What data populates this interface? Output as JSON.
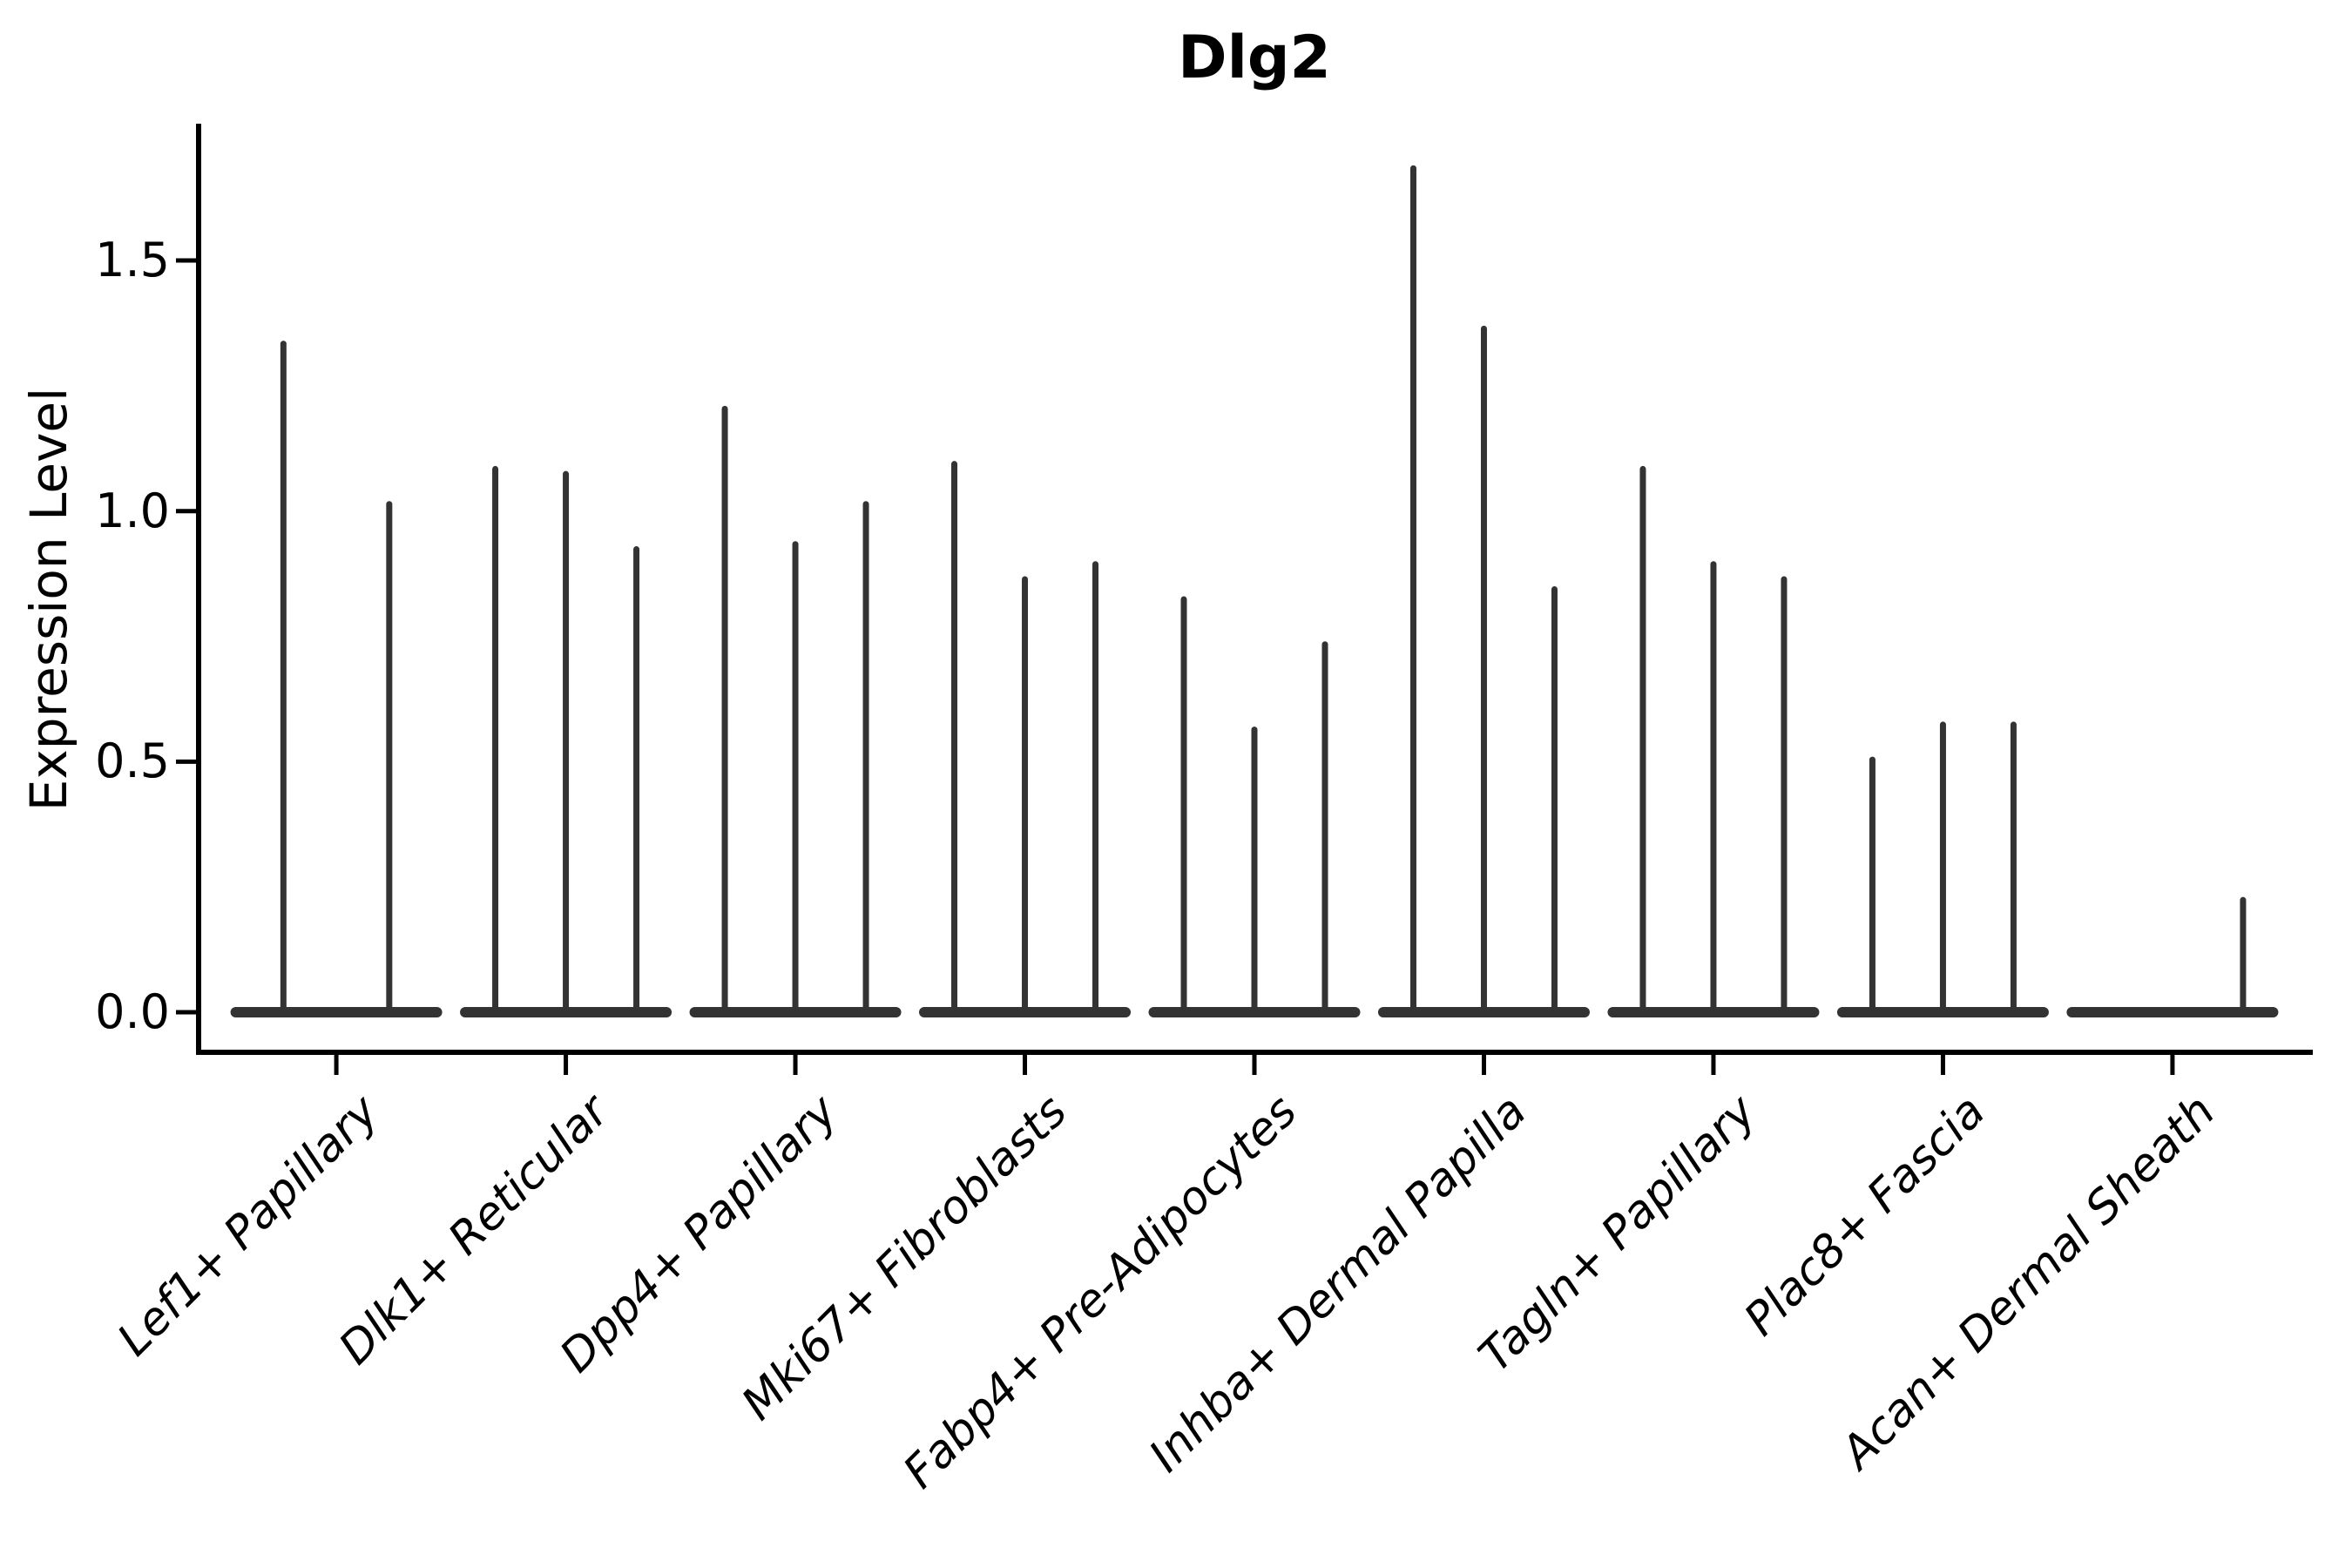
{
  "figure": {
    "background": "#ffffff"
  },
  "chart_data": {
    "type": "violin",
    "title": "Dlg2",
    "xlabel": "",
    "ylabel": "Expression Level",
    "ylim": [
      0,
      1.77
    ],
    "grid": false,
    "legend": "none",
    "axis_color": "#000000",
    "violin_color": "#333333",
    "y_ticks": [
      {
        "label": "0.0",
        "value": 0.0
      },
      {
        "label": "0.5",
        "value": 0.5
      },
      {
        "label": "1.0",
        "value": 1.0
      },
      {
        "label": "1.5",
        "value": 1.5
      }
    ],
    "categories": [
      "Lef1+ Papillary",
      "Dlk1+ Reticular",
      "Dpp4+ Papillary",
      "Mki67+ Fibroblasts",
      "Fabp4+ Pre-Adipocytes",
      "Inhba+ Dermal Papilla",
      "Tagln+ Papillary",
      "Plac8+ Fascia",
      "Acan+ Dermal Sheath"
    ],
    "groups": [
      {
        "label": "Lef1+ Papillary",
        "violin_peaks": [
          1.34,
          1.02
        ]
      },
      {
        "label": "Dlk1+ Reticular",
        "violin_peaks": [
          1.09,
          1.08,
          0.93
        ]
      },
      {
        "label": "Dpp4+ Papillary",
        "violin_peaks": [
          1.21,
          0.94,
          1.02
        ]
      },
      {
        "label": "Mki67+ Fibroblasts",
        "violin_peaks": [
          1.1,
          0.87,
          0.9
        ]
      },
      {
        "label": "Fabp4+ Pre-Adipocytes",
        "violin_peaks": [
          0.83,
          0.57,
          0.74
        ]
      },
      {
        "label": "Inhba+ Dermal Papilla",
        "violin_peaks": [
          1.69,
          1.37,
          0.85
        ]
      },
      {
        "label": "Tagln+ Papillary",
        "violin_peaks": [
          1.09,
          0.9,
          0.87
        ]
      },
      {
        "label": "Plac8+ Fascia",
        "violin_peaks": [
          0.51,
          0.58,
          0.58
        ]
      },
      {
        "label": "Acan+ Dermal Sheath",
        "violin_peaks": [
          0.0,
          0.0,
          0.23
        ]
      }
    ],
    "shape_note": "Each violin is almost entirely flat at expression 0 (wide flattened base bar) with a very thin density spike rising to its peak value."
  }
}
